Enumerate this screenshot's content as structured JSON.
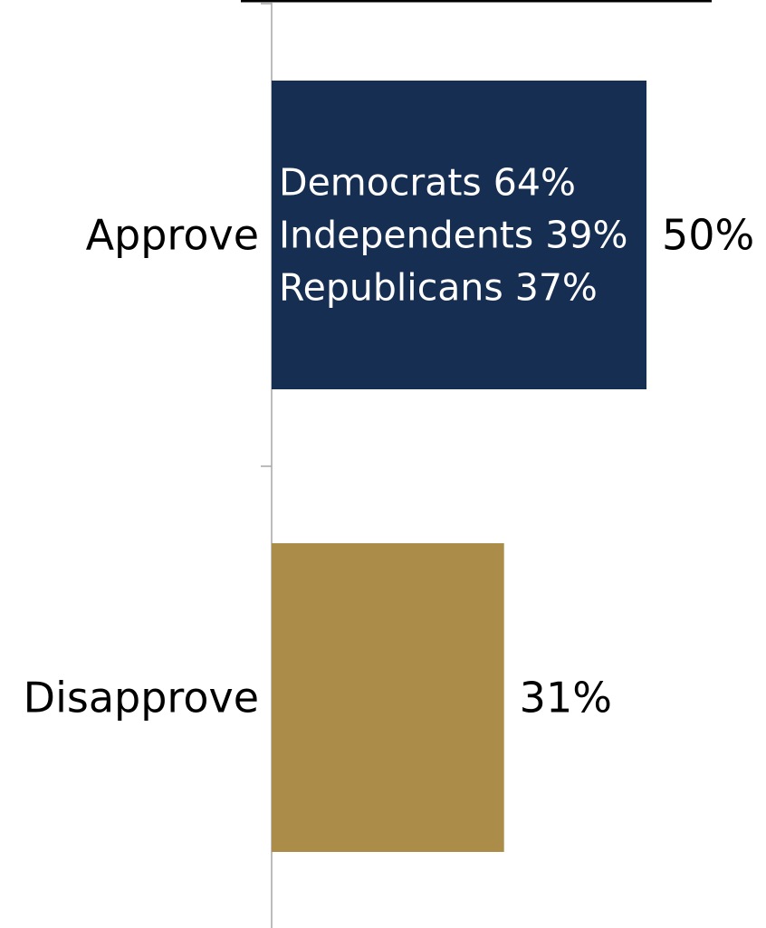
{
  "chart_data": {
    "type": "bar",
    "orientation": "horizontal",
    "title": "",
    "categories": [
      "Approve",
      "Disapprove"
    ],
    "values": [
      50,
      31
    ],
    "value_labels": [
      "50%",
      "31%"
    ],
    "xlim": [
      0,
      60
    ],
    "grid": false,
    "legend": "none",
    "colors": [
      "#152e52",
      "#ab8c48"
    ],
    "axis_color": "#a6a6a6",
    "bar_annotations": [
      {
        "category": "Approve",
        "lines": [
          {
            "label": "Democrats 64%",
            "group": "Democrats",
            "value": 64
          },
          {
            "label": "Independents 39%",
            "group": "Independents",
            "value": 39
          },
          {
            "label": "Republicans 37%",
            "group": "Republicans",
            "value": 37
          }
        ]
      }
    ]
  }
}
